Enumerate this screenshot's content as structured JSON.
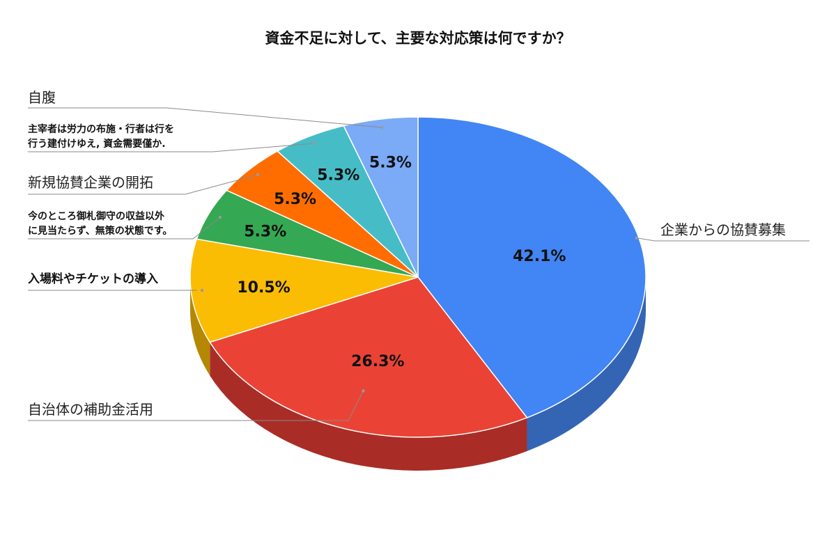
{
  "chart_data": {
    "type": "pie",
    "title": "資金不足に対して、主要な対応策は何ですか？",
    "slices": [
      {
        "label": "企業からの協賛募集",
        "value": 42.1,
        "value_label": "42.1%",
        "color": "#4285f4",
        "side_color": "#3465b5"
      },
      {
        "label": "自治体の補助金活用",
        "value": 26.3,
        "value_label": "26.3%",
        "color": "#ea4335",
        "side_color": "#a92d26"
      },
      {
        "label": "入場料やチケットの導入",
        "value": 10.5,
        "value_label": "10.5%",
        "color": "#fbbc04",
        "side_color": "#b58803"
      },
      {
        "label": "今のところ御札御守の収益以外に見当たらず、無策の状態です。",
        "label_lines": [
          "今のところ御札御守の収益以外",
          "に見当たらず、無策の状態です。"
        ],
        "value": 5.3,
        "value_label": "5.3%",
        "color": "#34a853",
        "side_color": "#257a3c"
      },
      {
        "label": "新規協賛企業の開拓",
        "value": 5.3,
        "value_label": "5.3%",
        "color": "#ff6d01",
        "side_color": "#b84f01"
      },
      {
        "label": "主宰者は労力の布施・行者は行を行う建付けゆえ, 資金需要僅か.",
        "label_lines": [
          "主宰者は労力の布施・行者は行を",
          "行う建付けゆえ, 資金需要僅か."
        ],
        "value": 5.3,
        "value_label": "5.3%",
        "color": "#46bdc6",
        "side_color": "#338990"
      },
      {
        "label": "自腹",
        "value": 5.3,
        "value_label": "5.3%",
        "color": "#7baaf7",
        "side_color": "#5a7db5"
      }
    ],
    "legend": "none",
    "style": "3d-pie"
  }
}
